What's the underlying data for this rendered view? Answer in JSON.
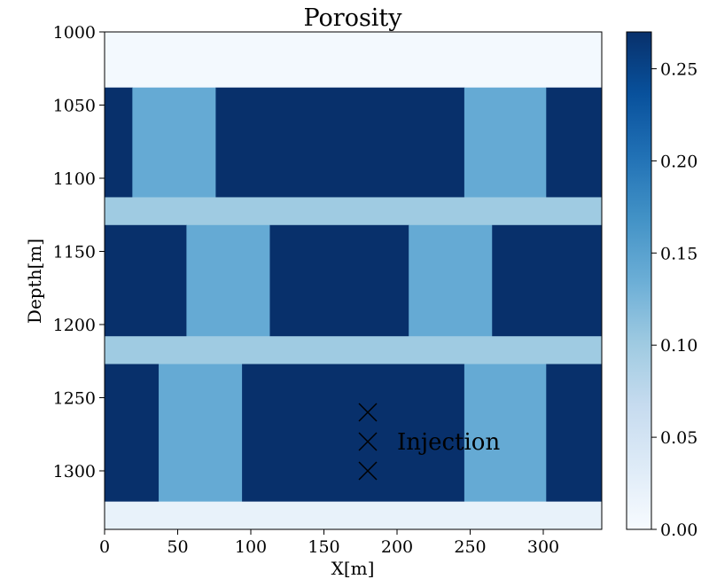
{
  "chart_data": {
    "type": "heatmap",
    "title": "Porosity",
    "xlabel": "X[m]",
    "ylabel": "Depth[m]",
    "xlim": [
      0,
      340
    ],
    "ylim": [
      1000,
      1340
    ],
    "y_inverted": true,
    "x_ticks": [
      0,
      50,
      100,
      150,
      200,
      250,
      300
    ],
    "x_tick_labels": [
      "0",
      "50",
      "100",
      "150",
      "200",
      "250",
      "300"
    ],
    "y_ticks": [
      1000,
      1050,
      1100,
      1150,
      1200,
      1250,
      1300
    ],
    "y_tick_labels": [
      "1000",
      "1050",
      "1100",
      "1150",
      "1200",
      "1250",
      "1300"
    ],
    "colormap": "Blues",
    "colorbar": {
      "range": [
        0,
        0.27
      ],
      "ticks": [
        0.0,
        0.05,
        0.1,
        0.15,
        0.2,
        0.25
      ],
      "tick_labels": [
        "0.00",
        "0.05",
        "0.10",
        "0.15",
        "0.20",
        "0.25"
      ]
    },
    "cells": [
      {
        "x0": 0,
        "x1": 340,
        "y0": 1000,
        "y1": 1038,
        "value": 0.005
      },
      {
        "x0": 0,
        "x1": 19,
        "y0": 1038,
        "y1": 1113,
        "value": 0.27
      },
      {
        "x0": 19,
        "x1": 76,
        "y0": 1038,
        "y1": 1113,
        "value": 0.14
      },
      {
        "x0": 76,
        "x1": 246,
        "y0": 1038,
        "y1": 1113,
        "value": 0.27
      },
      {
        "x0": 246,
        "x1": 302,
        "y0": 1038,
        "y1": 1113,
        "value": 0.14
      },
      {
        "x0": 302,
        "x1": 340,
        "y0": 1038,
        "y1": 1113,
        "value": 0.27
      },
      {
        "x0": 0,
        "x1": 340,
        "y0": 1113,
        "y1": 1132,
        "value": 0.1
      },
      {
        "x0": 0,
        "x1": 56,
        "y0": 1132,
        "y1": 1208,
        "value": 0.27
      },
      {
        "x0": 56,
        "x1": 113,
        "y0": 1132,
        "y1": 1208,
        "value": 0.14
      },
      {
        "x0": 113,
        "x1": 208,
        "y0": 1132,
        "y1": 1208,
        "value": 0.27
      },
      {
        "x0": 208,
        "x1": 265,
        "y0": 1132,
        "y1": 1208,
        "value": 0.14
      },
      {
        "x0": 265,
        "x1": 340,
        "y0": 1132,
        "y1": 1208,
        "value": 0.27
      },
      {
        "x0": 0,
        "x1": 340,
        "y0": 1208,
        "y1": 1227,
        "value": 0.1
      },
      {
        "x0": 0,
        "x1": 37,
        "y0": 1227,
        "y1": 1321,
        "value": 0.27
      },
      {
        "x0": 37,
        "x1": 94,
        "y0": 1227,
        "y1": 1321,
        "value": 0.14
      },
      {
        "x0": 94,
        "x1": 246,
        "y0": 1227,
        "y1": 1321,
        "value": 0.27
      },
      {
        "x0": 246,
        "x1": 302,
        "y0": 1227,
        "y1": 1321,
        "value": 0.14
      },
      {
        "x0": 302,
        "x1": 340,
        "y0": 1227,
        "y1": 1321,
        "value": 0.27
      },
      {
        "x0": 0,
        "x1": 340,
        "y0": 1321,
        "y1": 1340,
        "value": 0.02
      }
    ],
    "markers": [
      {
        "x": 180,
        "y": 1260,
        "symbol": "x"
      },
      {
        "x": 180,
        "y": 1280,
        "symbol": "x"
      },
      {
        "x": 180,
        "y": 1300,
        "symbol": "x"
      }
    ],
    "annotations": [
      {
        "text": "Injection",
        "x": 200,
        "y": 1280
      }
    ]
  }
}
